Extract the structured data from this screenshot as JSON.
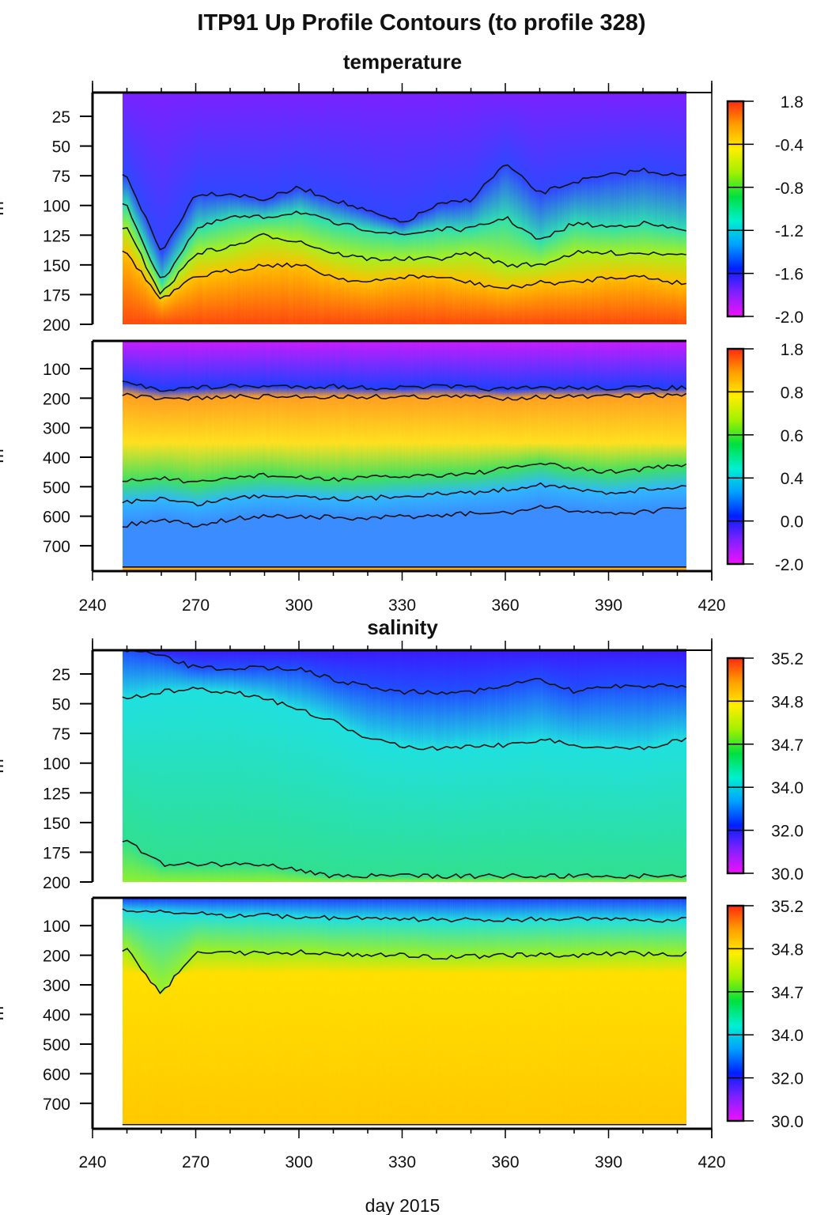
{
  "title": "ITP91 Up Profile Contours (to profile 328)",
  "xlabel": "day 2015",
  "ylabel": "m",
  "chart_data": {
    "type": "heatmap",
    "xlim": [
      240,
      420
    ],
    "x_ticks": [
      240,
      270,
      300,
      330,
      360,
      390,
      420
    ],
    "data_days": [
      248.7,
      412.6
    ],
    "contour_days": [
      250,
      260,
      270,
      280,
      290,
      300,
      310,
      320,
      330,
      340,
      350,
      360,
      370,
      380,
      390,
      400,
      410
    ],
    "sections": [
      {
        "label": "temperature",
        "panels": [
          {
            "variable": "temperature",
            "ylim": [
              5,
              200
            ],
            "y_ticks": [
              25,
              50,
              75,
              100,
              125,
              150,
              175,
              200
            ],
            "colorbar": [
              "1.8",
              "-0.4",
              "-0.8",
              "-1.2",
              "-1.6",
              "-2.0"
            ],
            "contours": [
              [
                75,
                140,
                90,
                90,
                95,
                85,
                95,
                105,
                115,
                100,
                95,
                65,
                90,
                80,
                75,
                70,
                75
              ],
              [
                100,
                165,
                120,
                110,
                110,
                105,
                115,
                120,
                125,
                120,
                120,
                110,
                130,
                115,
                118,
                115,
                120
              ],
              [
                120,
                175,
                140,
                135,
                125,
                130,
                140,
                145,
                145,
                145,
                140,
                150,
                150,
                140,
                140,
                140,
                140
              ],
              [
                140,
                180,
                160,
                155,
                150,
                150,
                160,
                165,
                160,
                160,
                165,
                170,
                165,
                165,
                160,
                160,
                165
              ]
            ],
            "colors": [
              "#7a22ff",
              "#3048ff",
              "#30e0b0",
              "#a8f020",
              "#ffc000",
              "#ff4a10"
            ]
          },
          {
            "variable": "temperature",
            "ylim": [
              6,
              786
            ],
            "y_ticks": [
              100,
              200,
              300,
              400,
              500,
              600,
              700
            ],
            "colorbar": [
              "1.8",
              "0.8",
              "0.6",
              "0.4",
              "0.0",
              "-2.0"
            ],
            "contours": [
              [
                150,
                170,
                165,
                160,
                160,
                160,
                160,
                165,
                165,
                160,
                165,
                170,
                165,
                165,
                165,
                165,
                165
              ],
              [
                190,
                205,
                200,
                195,
                195,
                195,
                195,
                195,
                195,
                195,
                195,
                200,
                195,
                195,
                195,
                190,
                190
              ],
              [
                480,
                470,
                490,
                470,
                460,
                470,
                475,
                470,
                465,
                460,
                455,
                440,
                420,
                440,
                450,
                440,
                430
              ],
              [
                550,
                540,
                560,
                540,
                530,
                530,
                540,
                540,
                530,
                525,
                520,
                510,
                490,
                510,
                520,
                510,
                500
              ],
              [
                630,
                610,
                630,
                610,
                600,
                600,
                605,
                610,
                600,
                600,
                590,
                590,
                570,
                580,
                590,
                585,
                575
              ]
            ],
            "colors": [
              "#c81cff",
              "#2040ff",
              "#ffa020",
              "#ffe020",
              "#40e060",
              "#30b8ff",
              "#3a8cff"
            ]
          }
        ]
      },
      {
        "label": "salinity",
        "panels": [
          {
            "variable": "salinity",
            "ylim": [
              5,
              200
            ],
            "y_ticks": [
              25,
              50,
              75,
              100,
              125,
              150,
              175,
              200
            ],
            "colorbar": [
              "35.2",
              "34.8",
              "34.7",
              "34.0",
              "32.0",
              "30.0"
            ],
            "contours": [
              [
                5,
                10,
                20,
                20,
                20,
                20,
                30,
                35,
                40,
                40,
                40,
                35,
                30,
                40,
                35,
                35,
                35
              ],
              [
                45,
                40,
                38,
                40,
                45,
                55,
                65,
                80,
                85,
                88,
                85,
                85,
                80,
                85,
                87,
                88,
                80
              ],
              [
                165,
                185,
                185,
                185,
                185,
                190,
                195,
                195,
                195,
                195,
                195,
                195,
                195,
                195,
                195,
                195,
                195
              ]
            ],
            "colors": [
              "#3a1cff",
              "#2050ff",
              "#20e0e0",
              "#30e090",
              "#90f030",
              "#f0f000"
            ]
          },
          {
            "variable": "salinity",
            "ylim": [
              6,
              786
            ],
            "y_ticks": [
              100,
              200,
              300,
              400,
              500,
              600,
              700
            ],
            "colorbar": [
              "35.2",
              "34.8",
              "34.7",
              "34.0",
              "32.0",
              "30.0"
            ],
            "contours": [
              [
                50,
                55,
                60,
                65,
                65,
                70,
                75,
                75,
                78,
                80,
                80,
                80,
                78,
                78,
                80,
                80,
                80
              ],
              [
                180,
                330,
                185,
                190,
                195,
                190,
                195,
                200,
                200,
                205,
                205,
                200,
                200,
                200,
                195,
                195,
                195
              ]
            ],
            "colors": [
              "#2040ff",
              "#20e0e0",
              "#a0f020",
              "#ffe000",
              "#ffc800"
            ]
          }
        ]
      }
    ],
    "colormap": [
      "#ff2a10",
      "#ffa000",
      "#ffee00",
      "#a0f000",
      "#00e040",
      "#00f0d0",
      "#00a0ff",
      "#0020ff",
      "#8020ff",
      "#f010ff"
    ]
  }
}
